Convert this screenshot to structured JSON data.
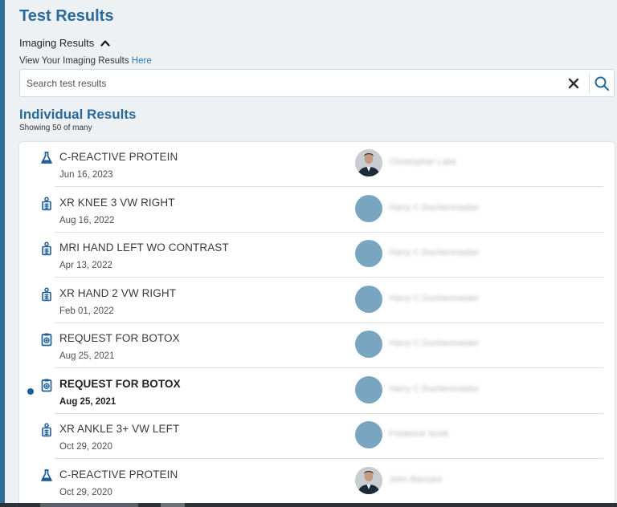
{
  "page": {
    "title": "Test Results",
    "imaging_toggle_label": "Imaging Results",
    "imaging_prompt": "View Your Imaging Results",
    "imaging_link": "Here"
  },
  "search": {
    "placeholder": "Search test results",
    "value": "",
    "clear_icon": "close-icon",
    "search_icon": "search-icon"
  },
  "results": {
    "section_title": "Individual Results",
    "count_text": "Showing 50 of many",
    "items": [
      {
        "name": "C-REACTIVE PROTEIN",
        "date": "Jun 16, 2023",
        "type": "lab",
        "icon": "lab-flask-icon",
        "provider": "Christopher Lake",
        "avatar": "photo",
        "unread": false
      },
      {
        "name": "XR KNEE 3 VW RIGHT",
        "date": "Aug 16, 2022",
        "type": "imaging",
        "icon": "imaging-icon",
        "provider": "Harry C Duchenmaster",
        "avatar": "placeholder",
        "unread": false
      },
      {
        "name": "MRI HAND LEFT WO CONTRAST",
        "date": "Apr 13, 2022",
        "type": "imaging",
        "icon": "imaging-icon",
        "provider": "Harry C Duchenmaster",
        "avatar": "placeholder",
        "unread": false
      },
      {
        "name": "XR HAND 2 VW RIGHT",
        "date": "Feb 01, 2022",
        "type": "imaging",
        "icon": "imaging-icon",
        "provider": "Harry C Duchenmaster",
        "avatar": "placeholder",
        "unread": false
      },
      {
        "name": "REQUEST FOR BOTOX",
        "date": "Aug 25, 2021",
        "type": "procedure",
        "icon": "clipboard-icon",
        "provider": "Harry C Duchenmaster",
        "avatar": "placeholder",
        "unread": false
      },
      {
        "name": "REQUEST FOR BOTOX",
        "date": "Aug 25, 2021",
        "type": "procedure",
        "icon": "clipboard-icon",
        "provider": "Harry C Duchenmaster",
        "avatar": "placeholder",
        "unread": true
      },
      {
        "name": "XR ANKLE 3+ VW LEFT",
        "date": "Oct 29, 2020",
        "type": "imaging",
        "icon": "imaging-icon",
        "provider": "Frederick Scott",
        "avatar": "placeholder",
        "unread": false
      },
      {
        "name": "C-REACTIVE PROTEIN",
        "date": "Oct 29, 2020",
        "type": "lab",
        "icon": "lab-flask-icon",
        "provider": "John Barnard",
        "avatar": "photo",
        "unread": false
      }
    ]
  },
  "colors": {
    "accent": "#2a6a9a",
    "link": "#2a7bb3",
    "unread_dot": "#1b5d9e",
    "avatar_placeholder": "#7aa5c1"
  }
}
